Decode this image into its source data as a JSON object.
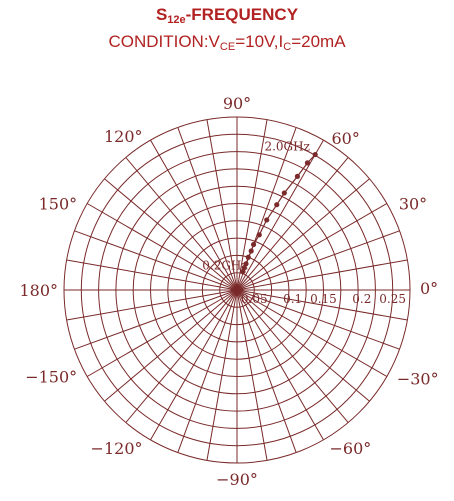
{
  "header": {
    "title_main": "S",
    "title_sub": "12e",
    "title_rest": "-FREQUENCY",
    "cond_prefix": "CONDITION:V",
    "cond_sub1": "CE",
    "cond_mid": "=10V,I",
    "cond_sub2": "C",
    "cond_end": "=20mA"
  },
  "chart_data": {
    "type": "scatter",
    "coordinate_system": "polar",
    "title": "S12e-FREQUENCY",
    "subtitle": "CONDITION:VCE=10V,IC=20mA",
    "radial_range": [
      0,
      0.25
    ],
    "radial_ticks": [
      0.05,
      0.1,
      0.15,
      0.2,
      0.25
    ],
    "radial_tick_labels": [
      "0.05",
      "0.1",
      "0.15",
      "0.2",
      "0.25"
    ],
    "angle_labels": [
      "0°",
      "30°",
      "60°",
      "90°",
      "120°",
      "150°",
      "180°",
      "−150°",
      "−120°",
      "−90°",
      "−60°",
      "−30°"
    ],
    "angle_values": [
      0,
      30,
      60,
      90,
      120,
      150,
      180,
      -150,
      -120,
      -90,
      -60,
      -30
    ],
    "grid": true,
    "annotations": [
      "2.0GHz",
      "0.2GHz"
    ],
    "series": [
      {
        "points": [
          {
            "mag": 0.028,
            "ang": 72
          },
          {
            "mag": 0.034,
            "ang": 72
          },
          {
            "mag": 0.04,
            "ang": 71
          },
          {
            "mag": 0.05,
            "ang": 71
          },
          {
            "mag": 0.06,
            "ang": 70
          },
          {
            "mag": 0.07,
            "ang": 70
          },
          {
            "mag": 0.086,
            "ang": 68
          },
          {
            "mag": 0.11,
            "ang": 67
          },
          {
            "mag": 0.136,
            "ang": 65
          },
          {
            "mag": 0.156,
            "ang": 64
          },
          {
            "mag": 0.186,
            "ang": 62
          },
          {
            "mag": 0.21,
            "ang": 61
          },
          {
            "mag": 0.226,
            "ang": 60
          }
        ]
      }
    ]
  }
}
